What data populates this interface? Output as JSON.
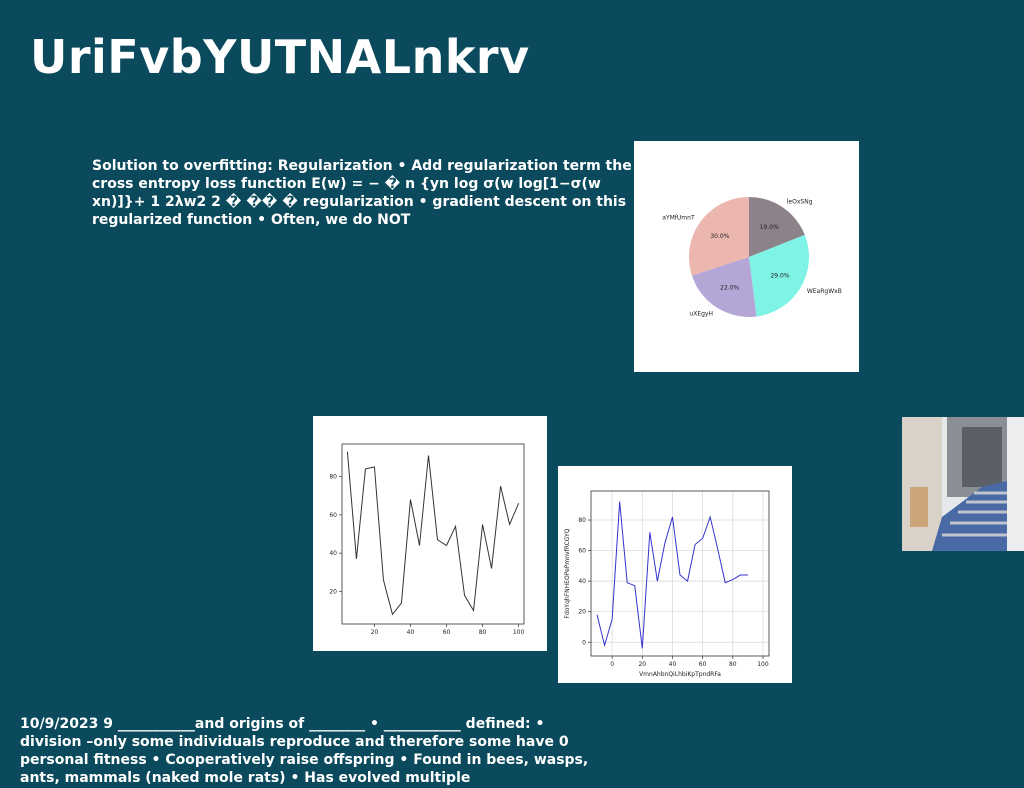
{
  "slide": {
    "title": "UriFvbYUTNALnkrv",
    "paragraph1": "Solution to overfitting: Regularization • Add regularization term the cross entropy loss function E(w) = − � n {yn log σ(w log[1−σ(w ⁣xn)]}+ 1 2λ⁣w⁣2 2 � �� � regularization • gradient descent on this regularized function • Often, we do NOT",
    "paragraph2": "10/9/2023 9 ___________and origins of ________ • ___________ defined: • division –only some individuals reproduce and therefore some have 0 personal fitness • Cooperatively raise offspring • Found in bees, wasps, ants, mammals (naked mole rats) • Has evolved multiple"
  },
  "chart_data": [
    {
      "type": "pie",
      "labels": [
        "leOxSNg",
        "WEaRgWxB",
        "uXEgyH",
        "aYMfUmnT"
      ],
      "values": [
        19.0,
        29.0,
        22.0,
        30.0
      ],
      "value_labels": [
        "19.0%",
        "29.0%",
        "22.0%",
        "30.0%"
      ],
      "colors": [
        "#8c8289",
        "#7ff3e6",
        "#b5a6d8",
        "#ebb7ae"
      ],
      "start_angle_deg": 90,
      "direction": "clockwise"
    },
    {
      "type": "line",
      "x": [
        5,
        10,
        15,
        20,
        25,
        30,
        35,
        40,
        45,
        50,
        55,
        60,
        65,
        70,
        75,
        80,
        85,
        90,
        95,
        100
      ],
      "y": [
        93,
        37,
        84,
        85,
        26,
        8,
        14,
        68,
        44,
        91,
        47,
        44,
        54,
        18,
        10,
        55,
        32,
        75,
        55,
        66
      ],
      "xticks": [
        20,
        40,
        60,
        80,
        100
      ],
      "yticks": [
        20,
        40,
        60,
        80
      ],
      "xlim": [
        2,
        103
      ],
      "ylim": [
        3,
        97
      ],
      "color": "#333333",
      "xlabel": "",
      "ylabel": "",
      "grid": false
    },
    {
      "type": "line",
      "x": [
        -10,
        -5,
        0,
        5,
        10,
        15,
        20,
        25,
        30,
        35,
        40,
        45,
        50,
        55,
        60,
        65,
        70,
        75,
        80,
        85,
        90,
        95,
        100
      ],
      "y": [
        18,
        -2,
        15,
        92,
        39,
        37,
        -4,
        72,
        40,
        65,
        82,
        44,
        40,
        64,
        68,
        82,
        61,
        39,
        41,
        44,
        44,
        44,
        44
      ],
      "x_points_used": 21,
      "xticks": [
        0,
        20,
        40,
        60,
        80,
        100
      ],
      "yticks": [
        0,
        20,
        40,
        60,
        80
      ],
      "xlim": [
        -14,
        104
      ],
      "ylim": [
        -9,
        99
      ],
      "color": "#3333cc",
      "xlabel": "VmnAhbnQiLhbiKpTpndRFa",
      "ylabel": "FdoYqhFNHEOPePmnvfRCGYQ",
      "grid": true
    }
  ],
  "photo": {
    "description_icon": "stairway-photo"
  }
}
